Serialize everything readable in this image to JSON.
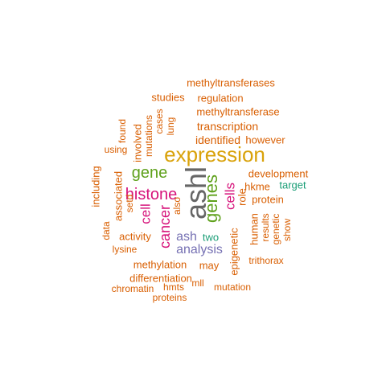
{
  "colors": {
    "orange": "#d95f02",
    "gold": "#d9a20a",
    "magenta": "#d6127a",
    "green": "#5fa11c",
    "gray": "#666666",
    "purple": "#7570b3",
    "teal": "#1b9e77"
  },
  "words": [
    {
      "text": "ashl",
      "color": "gray"
    },
    {
      "text": "expression",
      "color": "gold"
    },
    {
      "text": "genes",
      "color": "green"
    },
    {
      "text": "histone",
      "color": "magenta"
    },
    {
      "text": "gene",
      "color": "green"
    },
    {
      "text": "cancer",
      "color": "magenta"
    },
    {
      "text": "cells",
      "color": "magenta"
    },
    {
      "text": "cell",
      "color": "magenta"
    },
    {
      "text": "analysis",
      "color": "purple"
    },
    {
      "text": "ash",
      "color": "purple"
    },
    {
      "text": "two",
      "color": "teal"
    },
    {
      "text": "target",
      "color": "teal"
    },
    {
      "text": "methyltransferases",
      "color": "orange"
    },
    {
      "text": "regulation",
      "color": "orange"
    },
    {
      "text": "studies",
      "color": "orange"
    },
    {
      "text": "methyltransferase",
      "color": "orange"
    },
    {
      "text": "transcription",
      "color": "orange"
    },
    {
      "text": "identified",
      "color": "orange"
    },
    {
      "text": "however",
      "color": "orange"
    },
    {
      "text": "development",
      "color": "orange"
    },
    {
      "text": "hkme",
      "color": "orange"
    },
    {
      "text": "protein",
      "color": "orange"
    },
    {
      "text": "role",
      "color": "orange"
    },
    {
      "text": "human",
      "color": "orange"
    },
    {
      "text": "results",
      "color": "orange"
    },
    {
      "text": "genetic",
      "color": "orange"
    },
    {
      "text": "show",
      "color": "orange"
    },
    {
      "text": "epigenetic",
      "color": "orange"
    },
    {
      "text": "trithorax",
      "color": "orange"
    },
    {
      "text": "may",
      "color": "orange"
    },
    {
      "text": "methylation",
      "color": "orange"
    },
    {
      "text": "differentiation",
      "color": "orange"
    },
    {
      "text": "chromatin",
      "color": "orange"
    },
    {
      "text": "hmts",
      "color": "orange"
    },
    {
      "text": "mll",
      "color": "orange"
    },
    {
      "text": "mutation",
      "color": "orange"
    },
    {
      "text": "proteins",
      "color": "orange"
    },
    {
      "text": "lysine",
      "color": "orange"
    },
    {
      "text": "activity",
      "color": "orange"
    },
    {
      "text": "data",
      "color": "orange"
    },
    {
      "text": "associated",
      "color": "orange"
    },
    {
      "text": "setd",
      "color": "orange"
    },
    {
      "text": "including",
      "color": "orange"
    },
    {
      "text": "using",
      "color": "orange"
    },
    {
      "text": "found",
      "color": "orange"
    },
    {
      "text": "involved",
      "color": "orange"
    },
    {
      "text": "mutations",
      "color": "orange"
    },
    {
      "text": "cases",
      "color": "orange"
    },
    {
      "text": "lung",
      "color": "orange"
    },
    {
      "text": "also",
      "color": "orange"
    }
  ]
}
